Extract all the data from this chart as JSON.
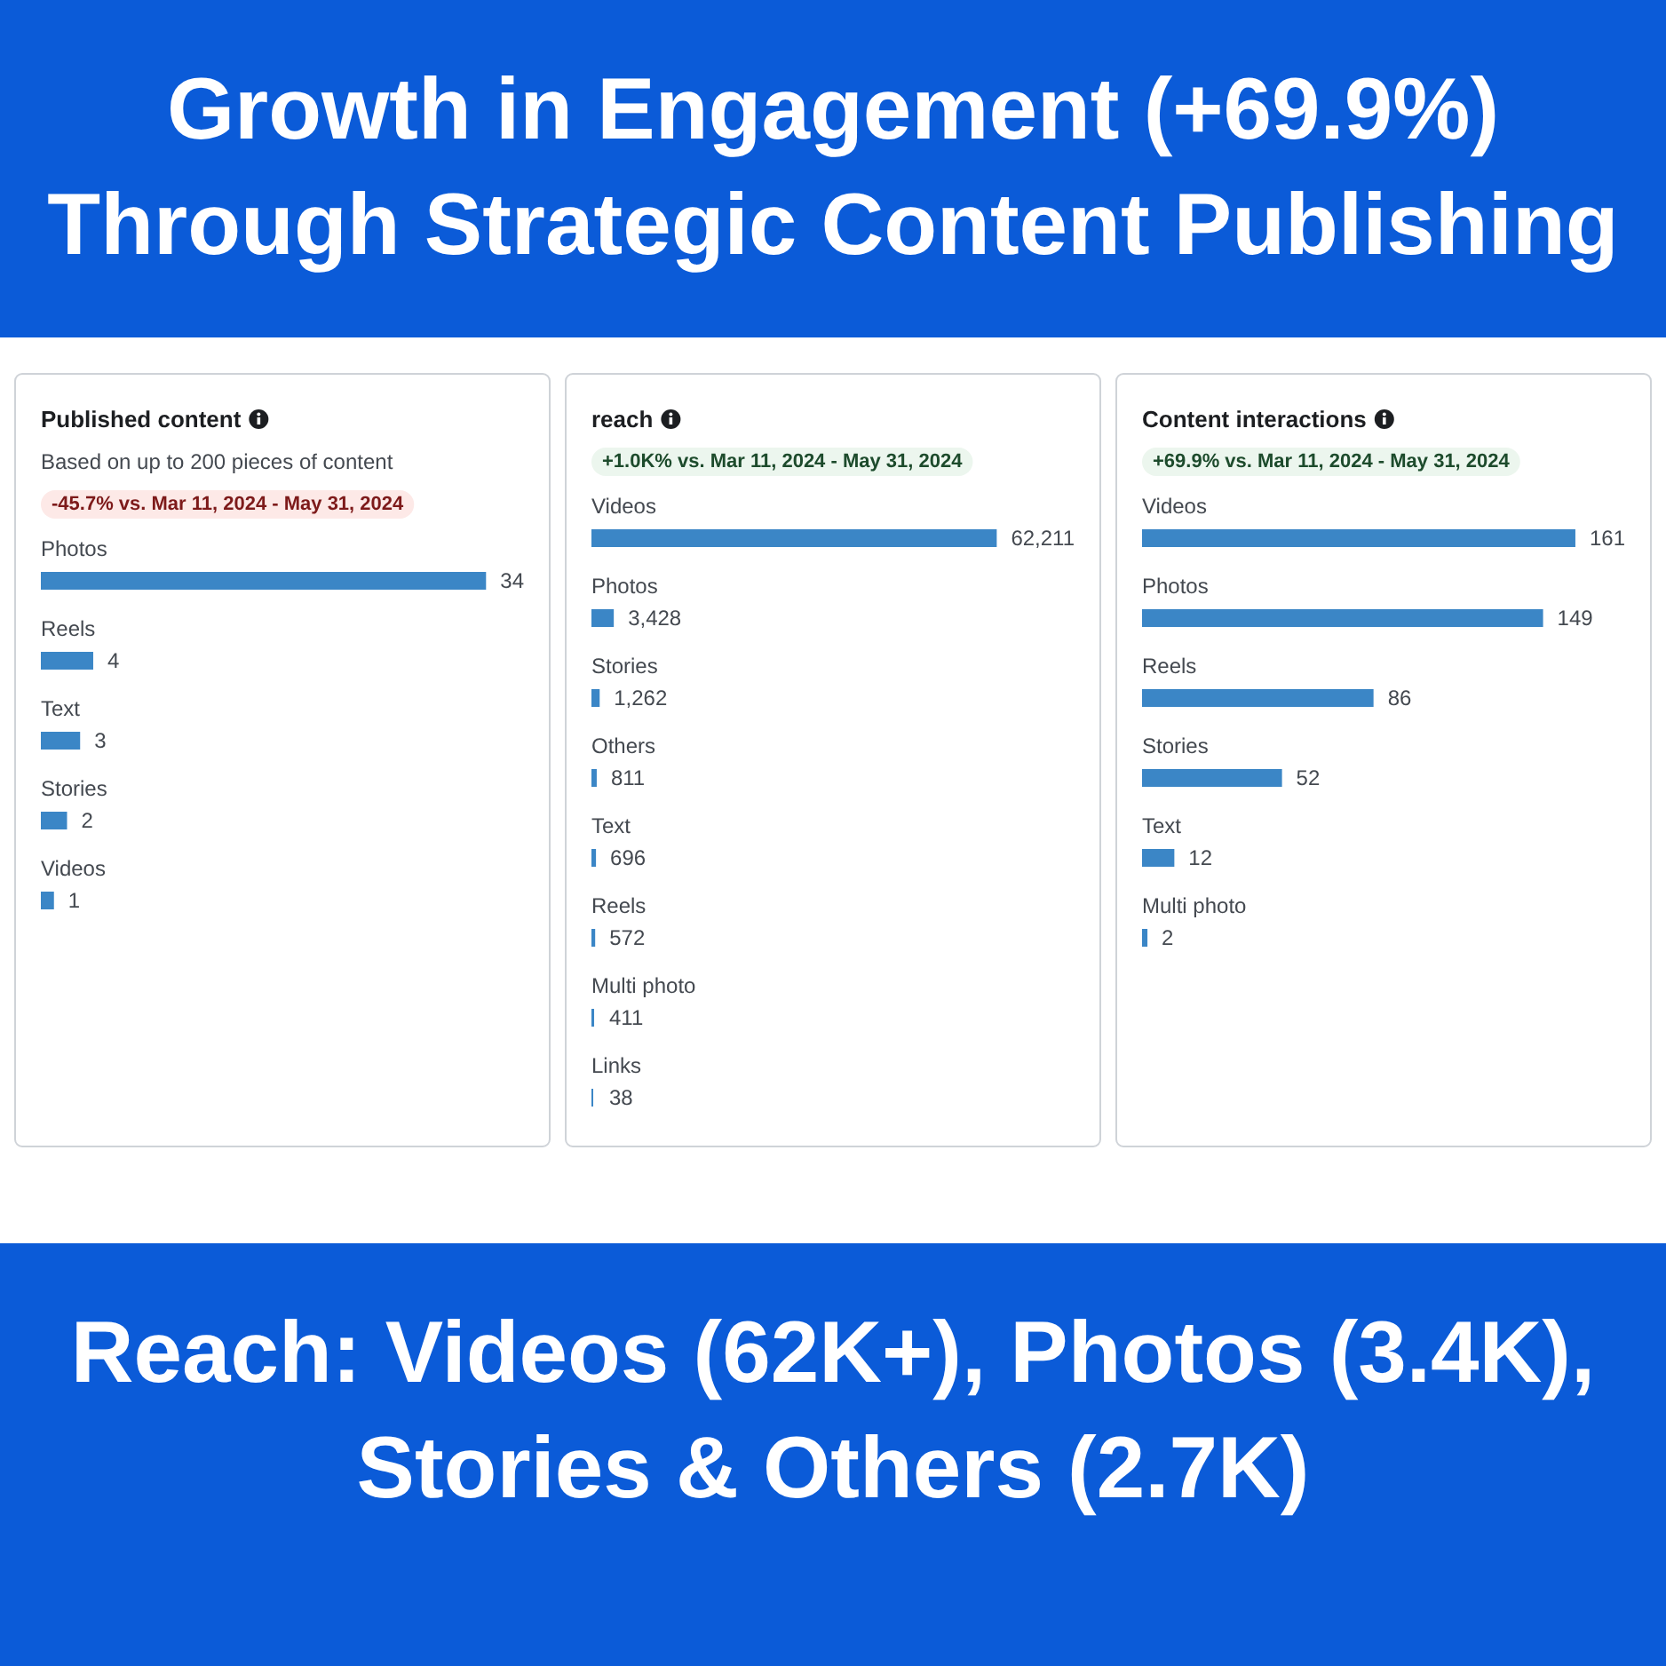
{
  "chart_data": [
    {
      "type": "other",
      "title": "Growth in Engagement (+69.9%) Through Strategic Content Publishing"
    },
    {
      "type": "bar",
      "orientation": "horizontal",
      "title": "Published content",
      "subtitle": "Based on up to 200 pieces of content",
      "annotations": [
        "-45.7% vs. Mar 11, 2024 - May 31, 2024"
      ],
      "categories": [
        "Photos",
        "Reels",
        "Text",
        "Stories",
        "Videos"
      ],
      "values": [
        34,
        4,
        3,
        2,
        1
      ],
      "color": "#3b86c6",
      "data_labels": true
    },
    {
      "type": "bar",
      "orientation": "horizontal",
      "title": "reach",
      "annotations": [
        "+1.0K% vs. Mar 11, 2024 - May 31, 2024"
      ],
      "categories": [
        "Videos",
        "Photos",
        "Stories",
        "Others",
        "Text",
        "Reels",
        "Multi photo",
        "Links"
      ],
      "values": [
        62211,
        3428,
        1262,
        811,
        696,
        572,
        411,
        38
      ],
      "value_labels": [
        "62,211",
        "3,428",
        "1,262",
        "811",
        "696",
        "572",
        "411",
        "38"
      ],
      "color": "#3b86c6"
    },
    {
      "type": "bar",
      "orientation": "horizontal",
      "title": "Content interactions",
      "annotations": [
        "+69.9% vs. Mar 11, 2024 - May 31, 2024"
      ],
      "categories": [
        "Videos",
        "Photos",
        "Reels",
        "Stories",
        "Text",
        "Multi photo"
      ],
      "values": [
        161,
        149,
        86,
        52,
        12,
        2
      ],
      "color": "#3b86c6",
      "data_labels": true
    },
    {
      "type": "other",
      "title": "Reach: Videos (62K+), Photos (3.4K), Stories & Others (2.7K)"
    }
  ]
}
